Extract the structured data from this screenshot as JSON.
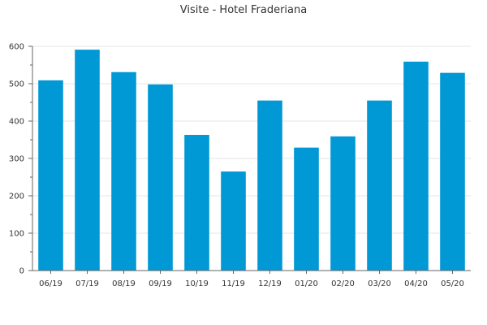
{
  "chart_data": {
    "type": "bar",
    "title": "Visite - Hotel Fraderiana",
    "xlabel": "",
    "ylabel": "",
    "categories": [
      "06/19",
      "07/19",
      "08/19",
      "09/19",
      "10/19",
      "11/19",
      "12/19",
      "01/20",
      "02/20",
      "03/20",
      "04/20",
      "05/20"
    ],
    "values": [
      509,
      591,
      531,
      498,
      363,
      265,
      455,
      329,
      359,
      455,
      559,
      529
    ],
    "ylim": [
      0,
      600
    ],
    "yticks": [
      0,
      100,
      200,
      300,
      400,
      500,
      600
    ],
    "grid": true,
    "legend": "none",
    "bar_color": "#0099d6"
  }
}
